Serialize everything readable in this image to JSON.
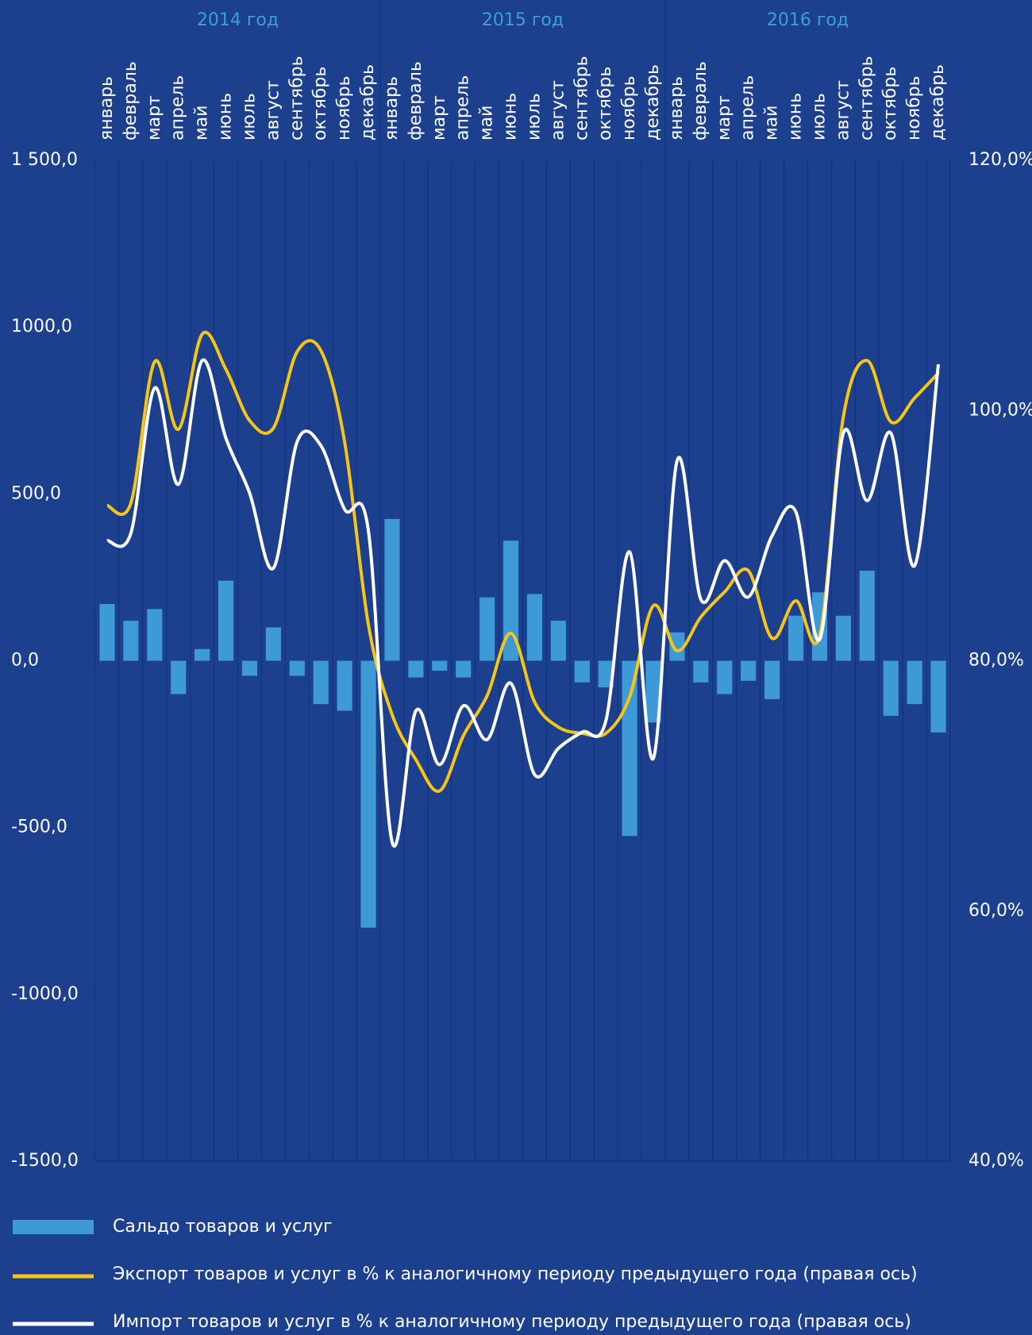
{
  "chart_data": {
    "type": "bar_line",
    "year_labels": [
      "2014 год",
      "2015 год",
      "2016 год"
    ],
    "categories": [
      "январь",
      "февраль",
      "март",
      "апрель",
      "май",
      "июнь",
      "июль",
      "август",
      "сентябрь",
      "октябрь",
      "ноябрь",
      "декабрь",
      "январь",
      "февраль",
      "март",
      "апрель",
      "май",
      "июнь",
      "июль",
      "август",
      "сентябрь",
      "октябрь",
      "ноябрь",
      "декабрь",
      "январь",
      "февраль",
      "март",
      "апрель",
      "май",
      "июнь",
      "июль",
      "август",
      "сентябрь",
      "октябрь",
      "ноябрь",
      "декабрь"
    ],
    "series": [
      {
        "name": "Сальдо товаров и услуг",
        "type": "bar",
        "color": "#3d9ad6",
        "values": [
          170,
          120,
          155,
          -100,
          35,
          240,
          -45,
          100,
          -45,
          -130,
          -150,
          -800,
          425,
          -50,
          -30,
          -50,
          190,
          360,
          200,
          120,
          -65,
          -80,
          -525,
          -185,
          85,
          -65,
          -100,
          -60,
          -115,
          135,
          205,
          135,
          270,
          -165,
          -130,
          -215
        ]
      },
      {
        "name": "Экспорт товаров и услуг в % к аналогичному периоду предыдущего года (правая ось)",
        "type": "line",
        "axis": "y2",
        "color": "#f5c518",
        "values": [
          92.4,
          92.6,
          103.9,
          98.5,
          106.1,
          103.3,
          99.2,
          98.6,
          104.7,
          104.8,
          97.5,
          82.9,
          75.7,
          72.1,
          69.6,
          74.0,
          77.2,
          82.2,
          76.7,
          74.7,
          74.2,
          74.2,
          77.1,
          84.4,
          80.8,
          83.5,
          85.5,
          87.2,
          81.8,
          84.8,
          82.0,
          99.5,
          104.0,
          99.1,
          101.0,
          103.0
        ]
      },
      {
        "name": "Импорт товаров и услуг в % к аналогичному периоду предыдущего года (правая ось)",
        "type": "line",
        "axis": "y2",
        "color": "#ffffff",
        "values": [
          89.6,
          90.2,
          101.8,
          94.1,
          104.0,
          97.8,
          93.4,
          87.4,
          97.5,
          97.2,
          92.1,
          90.4,
          65.5,
          76.0,
          71.7,
          76.4,
          73.7,
          78.2,
          70.9,
          73.0,
          74.3,
          75.2,
          88.7,
          72.2,
          96.0,
          84.9,
          88.0,
          85.1,
          90.0,
          91.9,
          81.7,
          98.2,
          92.8,
          98.2,
          87.6,
          103.7
        ]
      }
    ],
    "ylim": [
      -1500,
      1500
    ],
    "yticks": [
      {
        "value": -1500,
        "label": "-1500,0"
      },
      {
        "value": -1000,
        "label": "-1000,0"
      },
      {
        "value": -500,
        "label": "-500,0"
      },
      {
        "value": 0,
        "label": "0,0"
      },
      {
        "value": 500,
        "label": "500,0"
      },
      {
        "value": 1000,
        "label": "1000,0"
      },
      {
        "value": 1500,
        "label": "1 500,0"
      }
    ],
    "y2lim": [
      40,
      120
    ],
    "y2ticks": [
      {
        "value": 40,
        "label": "40,0%"
      },
      {
        "value": 60,
        "label": "60,0%"
      },
      {
        "value": 80,
        "label": "80,0%"
      },
      {
        "value": 100,
        "label": "100,0%"
      },
      {
        "value": 120,
        "label": "120,0%"
      }
    ],
    "grid": true
  }
}
